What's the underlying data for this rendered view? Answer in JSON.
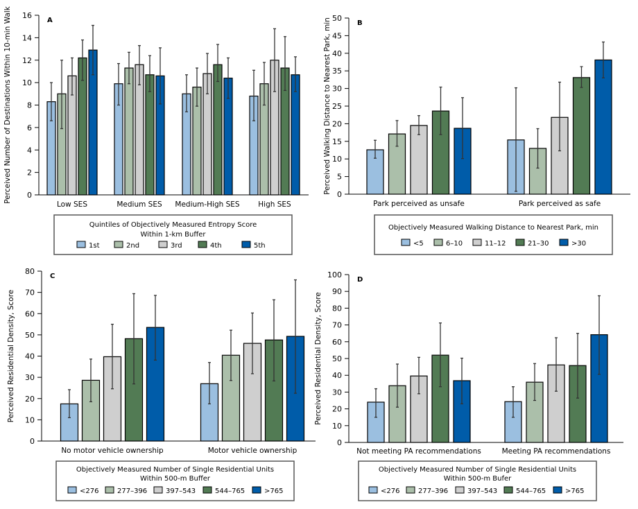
{
  "colors": [
    "#9bbfe0",
    "#abbfaa",
    "#cfcfcf",
    "#527b54",
    "#005ca9"
  ],
  "chart_data": [
    {
      "type": "bar",
      "panel_label": "A",
      "ylabel": "Perceived Number of Destinations Within 10-min Walk",
      "ylim": [
        0,
        16
      ],
      "ytick_step": 2,
      "categories": [
        "Low SES",
        "Medium SES",
        "Medium-High SES",
        "High SES"
      ],
      "legend_title": [
        "Quintiles of Objectively Measured Entropy Score",
        "Within 1-km Buffer"
      ],
      "series": [
        {
          "name": "1st",
          "values": [
            8.3,
            9.9,
            9.0,
            8.8
          ],
          "err_low": [
            6.6,
            8.0,
            7.4,
            6.6
          ],
          "err_high": [
            10.0,
            11.7,
            10.7,
            11.1
          ]
        },
        {
          "name": "2nd",
          "values": [
            9.0,
            11.3,
            9.6,
            9.9
          ],
          "err_low": [
            5.9,
            9.9,
            7.9,
            8.0
          ],
          "err_high": [
            12.0,
            12.7,
            11.3,
            11.8
          ]
        },
        {
          "name": "3rd",
          "values": [
            10.6,
            11.6,
            10.8,
            12.0
          ],
          "err_low": [
            8.9,
            9.8,
            9.0,
            9.2
          ],
          "err_high": [
            12.2,
            13.3,
            12.6,
            14.8
          ]
        },
        {
          "name": "4th",
          "values": [
            12.2,
            10.7,
            11.6,
            11.3
          ],
          "err_low": [
            10.2,
            9.2,
            10.1,
            9.3
          ],
          "err_high": [
            13.8,
            12.4,
            13.4,
            14.1
          ]
        },
        {
          "name": "5th",
          "values": [
            12.9,
            10.6,
            10.4,
            10.7
          ],
          "err_low": [
            10.7,
            8.1,
            8.6,
            9.2
          ],
          "err_high": [
            15.1,
            13.1,
            12.2,
            12.3
          ]
        }
      ]
    },
    {
      "type": "bar",
      "panel_label": "B",
      "ylabel": "Perceived Walking Distance to Nearest Park, min",
      "ylim": [
        0,
        50
      ],
      "ytick_step": 5,
      "categories": [
        "Park perceived as unsafe",
        "Park perceived as safe"
      ],
      "legend_title": [
        "Objectively Measured Walking Distance to Nearest Park, min"
      ],
      "series": [
        {
          "name": "<5",
          "values": [
            12.6,
            15.4
          ],
          "err_low": [
            10.2,
            0.8
          ],
          "err_high": [
            15.3,
            30.2
          ]
        },
        {
          "name": "6–10",
          "values": [
            17.1,
            13.0
          ],
          "err_low": [
            13.6,
            7.4
          ],
          "err_high": [
            20.9,
            18.6
          ]
        },
        {
          "name": "11–12",
          "values": [
            19.5,
            21.8
          ],
          "err_low": [
            16.9,
            12.3
          ],
          "err_high": [
            22.3,
            31.8
          ]
        },
        {
          "name": "21–30",
          "values": [
            23.6,
            33.1
          ],
          "err_low": [
            16.9,
            30.3
          ],
          "err_high": [
            30.4,
            36.2
          ]
        },
        {
          "name": ">30",
          "values": [
            18.7,
            38.1
          ],
          "err_low": [
            10.1,
            33.0
          ],
          "err_high": [
            27.4,
            43.2
          ]
        }
      ]
    },
    {
      "type": "bar",
      "panel_label": "C",
      "ylabel": "Perceived Residential Density, Score",
      "ylim": [
        0,
        80
      ],
      "ytick_step": 10,
      "categories": [
        "No motor vehicle ownership",
        "Motor vehicle ownership"
      ],
      "legend_title": [
        "Objectively Measured Number of Single Residential Units",
        "Within 500-m Buffer"
      ],
      "series": [
        {
          "name": "<276",
          "values": [
            17.5,
            27.0
          ],
          "err_low": [
            11.0,
            17.5
          ],
          "err_high": [
            24.2,
            37.0
          ]
        },
        {
          "name": "277–396",
          "values": [
            28.6,
            40.4
          ],
          "err_low": [
            18.5,
            28.5
          ],
          "err_high": [
            38.6,
            52.2
          ]
        },
        {
          "name": "397–543",
          "values": [
            39.7,
            46.0
          ],
          "err_low": [
            24.6,
            31.7
          ],
          "err_high": [
            55.0,
            60.3
          ]
        },
        {
          "name": "544–765",
          "values": [
            48.2,
            47.6
          ],
          "err_low": [
            26.9,
            28.3
          ],
          "err_high": [
            69.4,
            66.5
          ]
        },
        {
          "name": ">765",
          "values": [
            53.5,
            49.3
          ],
          "err_low": [
            38.1,
            22.5
          ],
          "err_high": [
            68.6,
            75.9
          ]
        }
      ]
    },
    {
      "type": "bar",
      "panel_label": "D",
      "ylabel": "Perceived Residential Density, Score",
      "ylim": [
        0,
        100
      ],
      "ytick_step": 10,
      "categories": [
        "Not meeting PA recommendations",
        "Meeting PA recommendations"
      ],
      "legend_title": [
        "Objectively Measured Number of Single Residential Units",
        "Within 500-m Bufer"
      ],
      "series": [
        {
          "name": "<276",
          "values": [
            24.0,
            24.3
          ],
          "err_low": [
            15.0,
            15.0
          ],
          "err_high": [
            32.0,
            33.2
          ]
        },
        {
          "name": "277–396",
          "values": [
            33.8,
            35.9
          ],
          "err_low": [
            21.0,
            25.0
          ],
          "err_high": [
            46.7,
            47.0
          ]
        },
        {
          "name": "397–543",
          "values": [
            39.6,
            46.2
          ],
          "err_low": [
            29.0,
            30.5
          ],
          "err_high": [
            50.7,
            62.4
          ]
        },
        {
          "name": "544–765",
          "values": [
            52.0,
            45.8
          ],
          "err_low": [
            33.2,
            26.4
          ],
          "err_high": [
            71.2,
            65.0
          ]
        },
        {
          "name": ">765",
          "values": [
            36.8,
            64.2
          ],
          "err_low": [
            23.0,
            40.6
          ],
          "err_high": [
            50.2,
            87.4
          ]
        }
      ]
    }
  ]
}
